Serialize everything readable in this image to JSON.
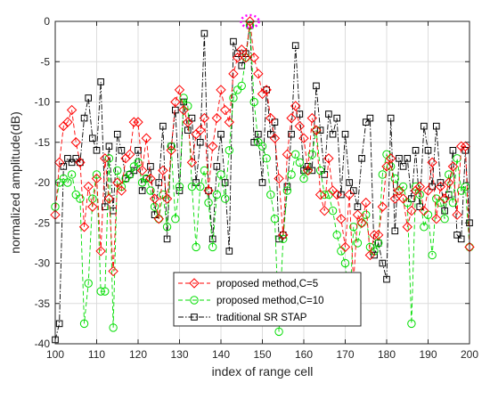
{
  "chart_data": {
    "type": "line",
    "xlabel": "index of range cell",
    "ylabel": "normalized amplitude(dB)",
    "xlim": [
      100,
      200
    ],
    "ylim": [
      -40,
      0
    ],
    "xticks": [
      100,
      110,
      120,
      130,
      140,
      150,
      160,
      170,
      180,
      190,
      200
    ],
    "yticks": [
      0,
      -5,
      -10,
      -15,
      -20,
      -25,
      -30,
      -35,
      -40
    ],
    "legend_position": "bottom-center",
    "annotation": "dotted magenta ellipse around the target peak at range cell 147, 0 dB",
    "series": [
      {
        "name": "proposed method,C=5",
        "color": "#ff0000",
        "line_style": "dashed",
        "marker": "diamond",
        "x": [
          100,
          101,
          102,
          103,
          104,
          105,
          106,
          107,
          108,
          109,
          110,
          111,
          112,
          113,
          114,
          115,
          116,
          117,
          118,
          119,
          120,
          121,
          122,
          123,
          124,
          125,
          126,
          127,
          128,
          129,
          130,
          131,
          132,
          133,
          134,
          135,
          136,
          137,
          138,
          139,
          140,
          141,
          142,
          143,
          144,
          145,
          146,
          147,
          148,
          149,
          150,
          151,
          152,
          153,
          154,
          155,
          156,
          157,
          158,
          159,
          160,
          161,
          162,
          163,
          164,
          165,
          166,
          167,
          168,
          169,
          170,
          171,
          172,
          173,
          174,
          175,
          176,
          177,
          178,
          179,
          180,
          181,
          182,
          183,
          184,
          185,
          186,
          187,
          188,
          189,
          190,
          191,
          192,
          193,
          194,
          195,
          196,
          197,
          198,
          199,
          200
        ],
        "y": [
          -24,
          -17.5,
          -13,
          -12.5,
          -11,
          -15,
          -17.5,
          -25.5,
          -20.5,
          -23,
          -19.5,
          -28.5,
          -17,
          -22,
          -31,
          -20,
          -21,
          -17,
          -16.5,
          -12.5,
          -12.5,
          -18.5,
          -14.5,
          -19.5,
          -22,
          -24.5,
          -18.5,
          -22,
          -16,
          -10,
          -8.5,
          -11,
          -12.5,
          -17.5,
          -14,
          -13.5,
          -12,
          -21,
          -15.5,
          -12,
          -8.5,
          -11,
          -12.5,
          -6.5,
          -4.5,
          -3.5,
          -4.5,
          0,
          -4.5,
          -6.5,
          -9,
          -8.5,
          -12,
          -14.5,
          -19.5,
          -26.5,
          -16.5,
          -12,
          -10.5,
          -13,
          -14.5,
          -18.5,
          -12,
          -13.5,
          -21.5,
          -23.5,
          -17,
          -21,
          -21.5,
          -24.5,
          -28,
          -21.5,
          -32.5,
          -24,
          -25,
          -22.5,
          -29,
          -26.5,
          -26.5,
          -23,
          -18,
          -17,
          -22,
          -21,
          -22,
          -25.5,
          -23.5,
          -21,
          -20.5,
          -23.5,
          -21,
          -17.5,
          -24.5,
          -20.5,
          -22,
          -20,
          -18,
          -24,
          -15.5,
          -15.5,
          -28
        ]
      },
      {
        "name": "proposed method,C=10",
        "color": "#00dd00",
        "line_style": "dashed",
        "marker": "circle",
        "x": [
          100,
          101,
          102,
          103,
          104,
          105,
          106,
          107,
          108,
          109,
          110,
          111,
          112,
          113,
          114,
          115,
          116,
          117,
          118,
          119,
          120,
          121,
          122,
          123,
          124,
          125,
          126,
          127,
          128,
          129,
          130,
          131,
          132,
          133,
          134,
          135,
          136,
          137,
          138,
          139,
          140,
          141,
          142,
          143,
          144,
          145,
          146,
          147,
          148,
          149,
          150,
          151,
          152,
          153,
          154,
          155,
          156,
          157,
          158,
          159,
          160,
          161,
          162,
          163,
          164,
          165,
          166,
          167,
          168,
          169,
          170,
          171,
          172,
          173,
          174,
          175,
          176,
          177,
          178,
          179,
          180,
          181,
          182,
          183,
          184,
          185,
          186,
          187,
          188,
          189,
          190,
          191,
          192,
          193,
          194,
          195,
          196,
          197,
          198,
          199,
          200
        ],
        "y": [
          -23,
          -20,
          -19.5,
          -20,
          -19,
          -21.5,
          -22,
          -37.5,
          -32.5,
          -22,
          -19,
          -33.5,
          -33.5,
          -17,
          -38,
          -18.5,
          -20.5,
          -19.5,
          -19,
          -18,
          -17.5,
          -20,
          -19.5,
          -21,
          -23,
          -24.5,
          -21.5,
          -25.5,
          -15.5,
          -24.5,
          -20.5,
          -9.5,
          -10.5,
          -20.5,
          -28,
          -20.5,
          -18.5,
          -22.5,
          -28,
          -21.5,
          -19,
          -22,
          -16,
          -9.5,
          -8.5,
          -8,
          -4.5,
          -0.5,
          -10,
          -15,
          -15.5,
          -17,
          -21.5,
          -24.5,
          -38.5,
          -27,
          -21,
          -19,
          -16.5,
          -17.5,
          -19.5,
          -18.5,
          -16.5,
          -13.5,
          -18.5,
          -21.5,
          -21.5,
          -23.5,
          -26.5,
          -28.5,
          -30,
          -36,
          -25.5,
          -27.5,
          -25,
          -24,
          -28,
          -28.5,
          -27.5,
          -19,
          -16.5,
          -18,
          -19.5,
          -21,
          -20.5,
          -22.5,
          -37.5,
          -20.5,
          -21.5,
          -25.5,
          -24,
          -29,
          -22,
          -22.5,
          -24.5,
          -19,
          -22.5,
          -17,
          -21,
          -20.5,
          -28
        ]
      },
      {
        "name": "traditional SR STAP",
        "color": "#000000",
        "line_style": "dashdot",
        "marker": "square",
        "x": [
          100,
          101,
          102,
          103,
          104,
          105,
          106,
          107,
          108,
          109,
          110,
          111,
          112,
          113,
          114,
          115,
          116,
          117,
          118,
          119,
          120,
          121,
          122,
          123,
          124,
          125,
          126,
          127,
          128,
          129,
          130,
          131,
          132,
          133,
          134,
          135,
          136,
          137,
          138,
          139,
          140,
          141,
          142,
          143,
          144,
          145,
          146,
          147,
          148,
          149,
          150,
          151,
          152,
          153,
          154,
          155,
          156,
          157,
          158,
          159,
          160,
          161,
          162,
          163,
          164,
          165,
          166,
          167,
          168,
          169,
          170,
          171,
          172,
          173,
          174,
          175,
          176,
          177,
          178,
          179,
          180,
          181,
          182,
          183,
          184,
          185,
          186,
          187,
          188,
          189,
          190,
          191,
          192,
          193,
          194,
          195,
          196,
          197,
          198,
          199,
          200
        ],
        "y": [
          -39.5,
          -37.5,
          -18,
          -17,
          -17.5,
          -17,
          -17.5,
          -12,
          -9.5,
          -14.5,
          -16,
          -7.5,
          -23,
          -15.5,
          -23.5,
          -14,
          -16,
          -19.5,
          -19,
          -18.5,
          -16,
          -21,
          -19.5,
          -18,
          -24,
          -20,
          -13,
          -27,
          -15.5,
          -11,
          -21,
          -10,
          -13.5,
          -12,
          -20,
          -15,
          -1.5,
          -21,
          -27,
          -18,
          -14,
          -20,
          -28.5,
          -2.5,
          -4,
          -5.5,
          -4,
          -0.5,
          -15,
          -14,
          -20,
          -8.5,
          -14,
          -12.5,
          -27,
          -26.5,
          -20.5,
          -14,
          -3,
          -11.5,
          -18.5,
          -18,
          -18.5,
          -8,
          -13.5,
          -19,
          -11.5,
          -14,
          -12,
          -21.5,
          -14,
          -20,
          -21,
          -23,
          -17,
          -12.5,
          -12,
          -29,
          -27.5,
          -30,
          -32,
          -12,
          -26,
          -17,
          -18,
          -17,
          -22,
          -16,
          -23,
          -13,
          -16,
          -20.5,
          -13,
          -20,
          -23.5,
          -21.5,
          -16,
          -26.5,
          -27,
          -16,
          -25
        ]
      }
    ]
  }
}
